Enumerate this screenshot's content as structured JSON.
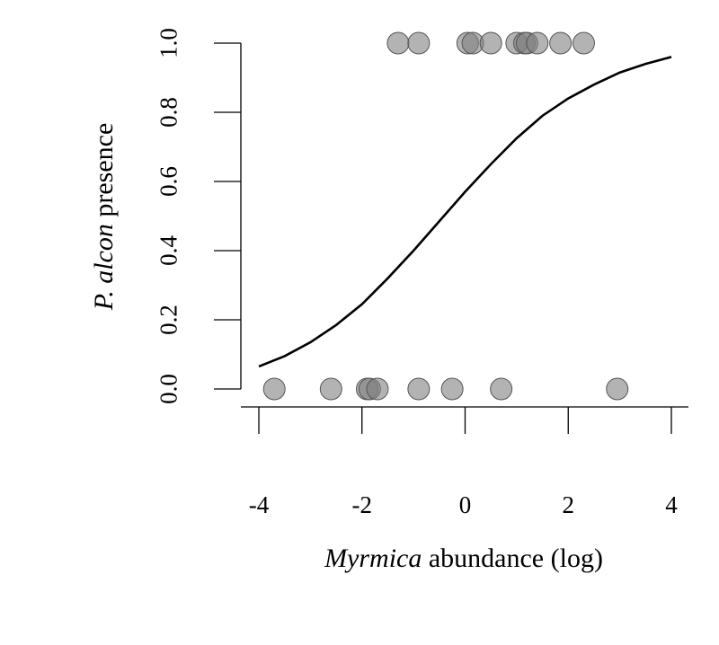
{
  "chart_data": {
    "type": "scatter",
    "title": "",
    "xlabel": {
      "italic": "Myrmica",
      "rest": " abundance (log)"
    },
    "ylabel": {
      "italic": "P. alcon",
      "rest": " presence"
    },
    "xlim": [
      -4,
      4
    ],
    "ylim": [
      0,
      1
    ],
    "xticks": [
      -4,
      -2,
      0,
      2,
      4
    ],
    "xtick_labels": [
      "-4",
      "-2",
      "0",
      "2",
      "4"
    ],
    "yticks": [
      0,
      0.2,
      0.4,
      0.6,
      0.8,
      1
    ],
    "ytick_labels": [
      "0.0",
      "0.2",
      "0.4",
      "0.6",
      "0.8",
      "1.0"
    ],
    "grid": false,
    "point_color": "#808080",
    "point_opacity": 0.6,
    "curve_color": "#000000",
    "points": [
      {
        "x": -3.7,
        "y": 0
      },
      {
        "x": -2.6,
        "y": 0
      },
      {
        "x": -1.9,
        "y": 0
      },
      {
        "x": -1.85,
        "y": 0
      },
      {
        "x": -1.7,
        "y": 0
      },
      {
        "x": -0.9,
        "y": 0
      },
      {
        "x": -0.25,
        "y": 0
      },
      {
        "x": 0.7,
        "y": 0
      },
      {
        "x": 2.95,
        "y": 0
      },
      {
        "x": -1.3,
        "y": 1
      },
      {
        "x": -0.9,
        "y": 1
      },
      {
        "x": 0.05,
        "y": 1
      },
      {
        "x": 0.15,
        "y": 1
      },
      {
        "x": 0.5,
        "y": 1
      },
      {
        "x": 1.0,
        "y": 1
      },
      {
        "x": 1.15,
        "y": 1
      },
      {
        "x": 1.2,
        "y": 1
      },
      {
        "x": 1.4,
        "y": 1
      },
      {
        "x": 1.85,
        "y": 1
      },
      {
        "x": 2.3,
        "y": 1
      }
    ],
    "fit_curve": {
      "type": "logistic",
      "x": [
        -4,
        -3.5,
        -3,
        -2.5,
        -2,
        -1.5,
        -1,
        -0.5,
        0,
        0.5,
        1,
        1.5,
        2,
        2.5,
        3,
        3.5,
        4
      ],
      "y": [
        0.065,
        0.095,
        0.135,
        0.185,
        0.245,
        0.32,
        0.4,
        0.485,
        0.57,
        0.65,
        0.725,
        0.79,
        0.84,
        0.88,
        0.915,
        0.94,
        0.96
      ]
    }
  }
}
